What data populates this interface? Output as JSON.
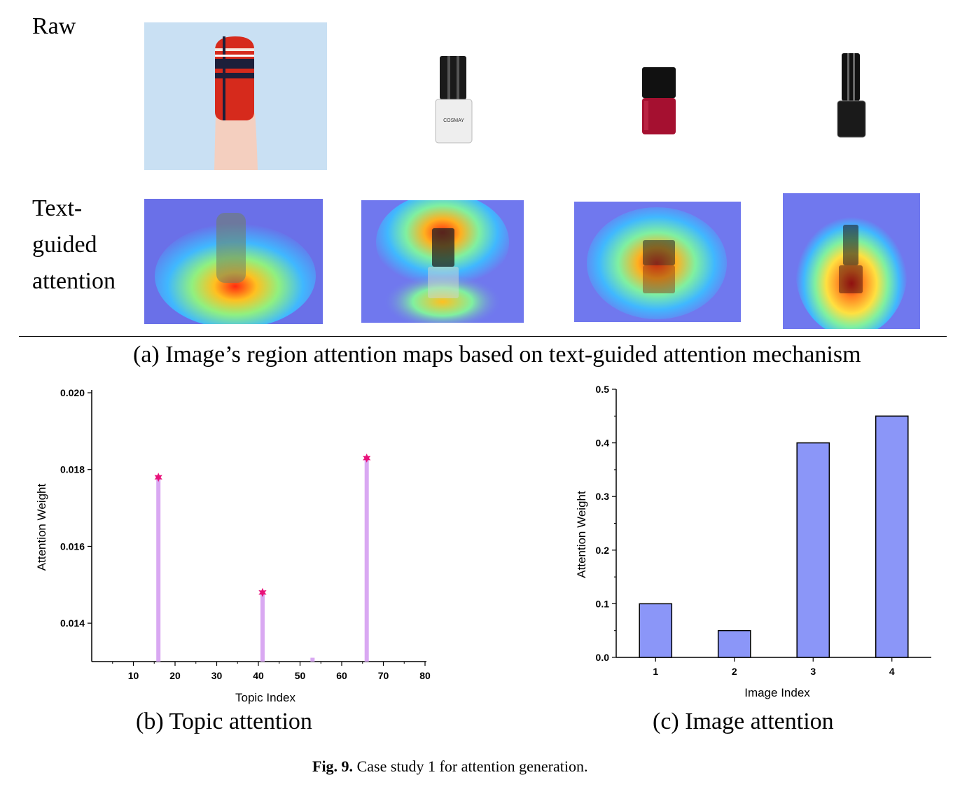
{
  "panel_a": {
    "row_raw_label": "Raw",
    "row_attention_label_lines": [
      "Text-",
      "guided",
      "attention"
    ],
    "caption": "(a) Image’s region attention maps based on text-guided attention mechanism",
    "images": [
      {
        "subject": "nail-with-red-black-polish",
        "row": "raw"
      },
      {
        "subject": "white-nail-polish-bottle",
        "row": "raw",
        "label_text": "COSMAY"
      },
      {
        "subject": "red-nail-polish-bottle",
        "row": "raw"
      },
      {
        "subject": "black-nail-polish-bottle",
        "row": "raw"
      },
      {
        "subject": "nail-heatmap",
        "row": "attention"
      },
      {
        "subject": "white-bottle-heatmap",
        "row": "attention"
      },
      {
        "subject": "red-bottle-heatmap",
        "row": "attention"
      },
      {
        "subject": "black-bottle-heatmap",
        "row": "attention"
      }
    ]
  },
  "chart_data": [
    {
      "type": "stem",
      "caption": "(b) Topic attention",
      "xlabel": "Topic Index",
      "ylabel": "Attention Weight",
      "xlim": [
        0,
        80
      ],
      "ylim": [
        0.013,
        0.02
      ],
      "xticks": [
        10,
        20,
        30,
        40,
        50,
        60,
        70,
        80
      ],
      "yticks": [
        0.014,
        0.016,
        0.018,
        0.02
      ],
      "ytick_labels": [
        "0.014",
        "0.016",
        "0.018",
        "0.020"
      ],
      "x": [
        16,
        41,
        53,
        66
      ],
      "values": [
        0.0178,
        0.0148,
        0.0131,
        0.0183
      ],
      "marker": [
        true,
        true,
        false,
        true
      ],
      "stem_color": "#d9a8f2",
      "marker_color": "#e8127a",
      "grid": false
    },
    {
      "type": "bar",
      "caption": "(c) Image attention",
      "xlabel": "Image Index",
      "ylabel": "Attention Weight",
      "categories": [
        "1",
        "2",
        "3",
        "4"
      ],
      "values": [
        0.1,
        0.05,
        0.4,
        0.45
      ],
      "ylim": [
        0,
        0.5
      ],
      "yticks": [
        0.0,
        0.1,
        0.2,
        0.3,
        0.4,
        0.5
      ],
      "ytick_labels": [
        "0.0",
        "0.1",
        "0.2",
        "0.3",
        "0.4",
        "0.5"
      ],
      "bar_color": "#8b96f8",
      "grid": false
    }
  ],
  "figure_caption": {
    "label": "Fig. 9.",
    "text": "Case study 1 for attention generation."
  }
}
